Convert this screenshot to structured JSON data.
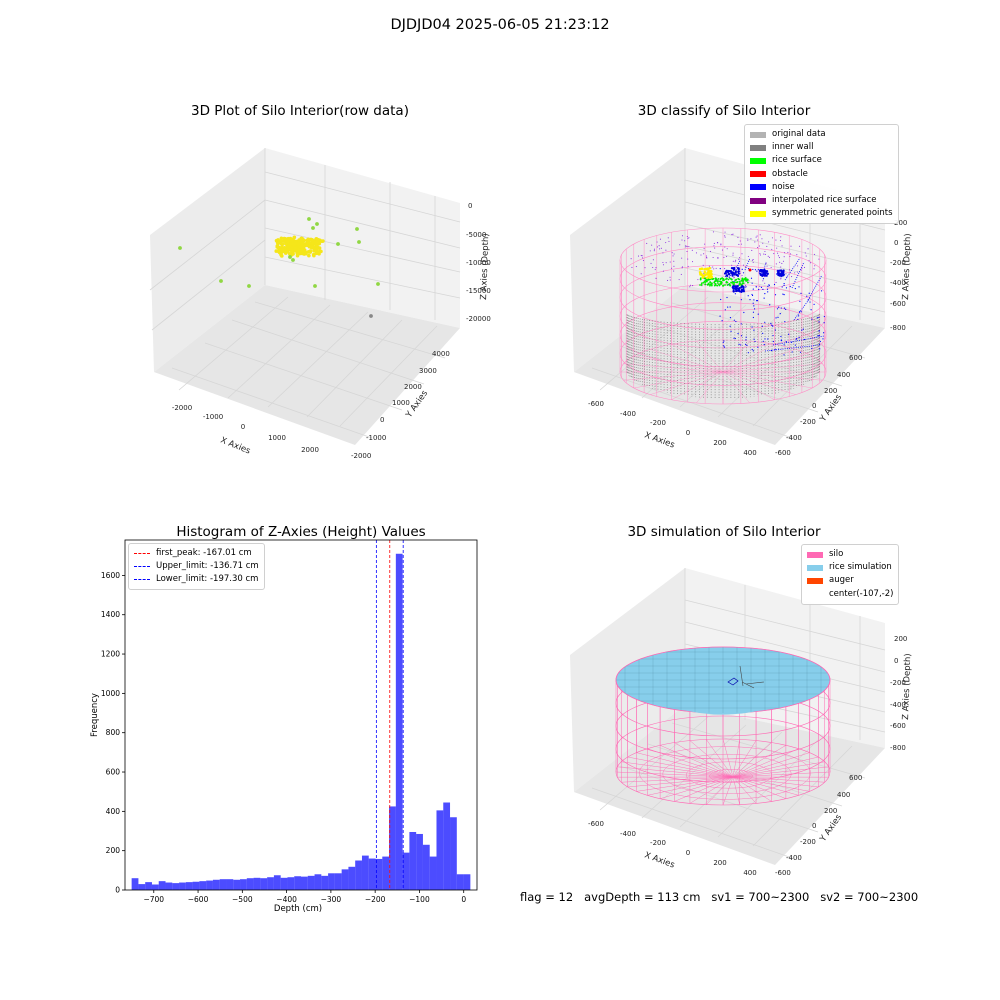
{
  "suptitle": "DJDJD04 2025-06-05 21:23:12",
  "footer": "flag = 12   avgDepth = 113 cm   sv1 = 700~2300   sv2 = 700~2300",
  "panel_raw": {
    "title": "3D Plot of Silo Interior(row data)",
    "xlabel": "X Axies",
    "ylabel": "Y Axies",
    "zlabel": "Z Axies (Depth)",
    "xticks": [
      "-2000",
      "-1000",
      "0",
      "1000",
      "2000"
    ],
    "yticks": [
      "-2000",
      "-1000",
      "0",
      "1000",
      "2000",
      "3000",
      "4000"
    ],
    "zticks": [
      "-20000",
      "-15000",
      "-10000",
      "-5000",
      "0"
    ]
  },
  "panel_classify": {
    "title": "3D classify of Silo Interior",
    "xlabel": "X Axies",
    "ylabel": "Y Axies",
    "zlabel": "Z Axies (Depth)",
    "xticks": [
      "-600",
      "-400",
      "-200",
      "0",
      "200",
      "400"
    ],
    "yticks": [
      "-600",
      "-400",
      "-200",
      "0",
      "200",
      "400",
      "600"
    ],
    "zticks": [
      "-800",
      "-600",
      "-400",
      "-200",
      "0",
      "200"
    ],
    "legend": [
      {
        "label": "original data",
        "color": "#b3b3b3"
      },
      {
        "label": "inner wall",
        "color": "#808080"
      },
      {
        "label": "rice surface",
        "color": "#00ff00"
      },
      {
        "label": "obstacle",
        "color": "#ff0000"
      },
      {
        "label": "noise",
        "color": "#0000ff"
      },
      {
        "label": "interpolated rice surface",
        "color": "#800080"
      },
      {
        "label": "symmetric generated points",
        "color": "#ffff00"
      }
    ]
  },
  "panel_sim": {
    "title": "3D simulation of Silo Interior",
    "xlabel": "X Axies",
    "ylabel": "Y Axies",
    "zlabel": "Z Axies (Depth)",
    "xticks": [
      "-600",
      "-400",
      "-200",
      "0",
      "200",
      "400"
    ],
    "yticks": [
      "-600",
      "-400",
      "-200",
      "0",
      "200",
      "400",
      "600"
    ],
    "zticks": [
      "-800",
      "-600",
      "-400",
      "-200",
      "0",
      "200"
    ],
    "legend": [
      {
        "label": "silo",
        "color": "#ff69b4"
      },
      {
        "label": "rice simulation",
        "color": "#87ceeb"
      },
      {
        "label": "auger",
        "color": "#ff4500"
      },
      {
        "label": "center(-107,-2)",
        "color": ""
      }
    ]
  },
  "chart_data": {
    "type": "bar",
    "title": "Histogram of Z-Axies (Height) Values",
    "xlabel": "Depth (cm)",
    "ylabel": "Frequency",
    "xlim": [
      -765,
      30
    ],
    "ylim": [
      0,
      1780
    ],
    "xticks": [
      -700,
      -600,
      -500,
      -400,
      -300,
      -200,
      -100,
      0
    ],
    "yticks": [
      0,
      200,
      400,
      600,
      800,
      1000,
      1200,
      1400,
      1600
    ],
    "bin_start": -750,
    "bin_width": 15.3,
    "values": [
      60,
      30,
      40,
      28,
      45,
      38,
      35,
      38,
      40,
      42,
      45,
      48,
      52,
      55,
      55,
      52,
      55,
      60,
      62,
      60,
      65,
      75,
      62,
      65,
      70,
      68,
      72,
      80,
      72,
      85,
      85,
      105,
      118,
      150,
      175,
      160,
      158,
      170,
      425,
      1710,
      190,
      295,
      285,
      230,
      170,
      405,
      445,
      370,
      80,
      80
    ],
    "bar_color": "#0000ff",
    "legend_position": "upper-left",
    "vlines": [
      {
        "label": "first_peak: -167.01 cm",
        "x": -167.01,
        "color": "#ff0000"
      },
      {
        "label": "Upper_limit: -136.71 cm",
        "x": -136.71,
        "color": "#0000ff"
      },
      {
        "label": "Lower_limit: -197.30 cm",
        "x": -197.3,
        "color": "#0000ff"
      }
    ]
  }
}
